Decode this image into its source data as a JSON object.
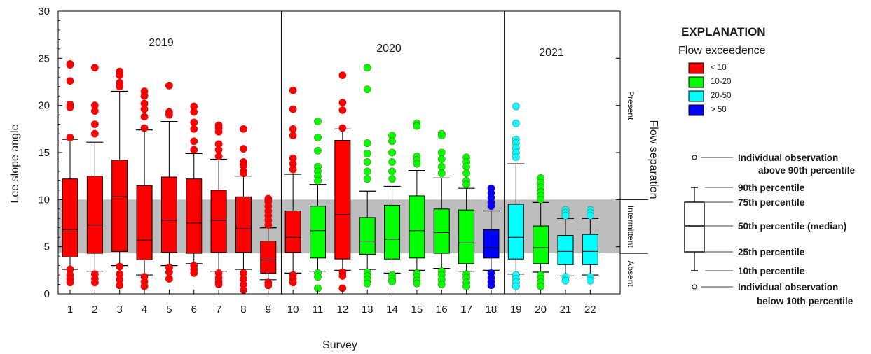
{
  "chart_data": {
    "type": "box",
    "xlabel": "Survey",
    "ylabel": "Lee slope angle",
    "ylim": [
      0,
      30
    ],
    "yticks": [
      0,
      5,
      10,
      15,
      20,
      25,
      30
    ],
    "grid": false,
    "years": [
      {
        "label": "2019",
        "surveys": [
          1,
          9
        ]
      },
      {
        "label": "2020",
        "surveys": [
          10,
          18
        ]
      },
      {
        "label": "2021",
        "surveys": [
          19,
          22
        ]
      }
    ],
    "bands": {
      "shaded_range": [
        4.3,
        10
      ],
      "labels": [
        "Present",
        "Intermittent",
        "Absent"
      ],
      "title": "Flow separation"
    },
    "colors": {
      "lt10": "#ff0000",
      "10_20": "#00ff00",
      "20_50": "#00ffff",
      "gt50": "#0000ff",
      "band": "#bdbdbd"
    },
    "surveys": [
      {
        "survey": "1",
        "flow": "lt10",
        "p10": 2.6,
        "q1": 3.9,
        "median": 6.8,
        "q3": 12.2,
        "p90": 16.4,
        "outliers": [
          24.4,
          24.3,
          22.6,
          20.1,
          19.8,
          16.6,
          2.6,
          2.0,
          1.6,
          1.2
        ]
      },
      {
        "survey": "2",
        "flow": "lt10",
        "p10": 2.4,
        "q1": 4.3,
        "median": 7.3,
        "q3": 12.5,
        "p90": 16.1,
        "outliers": [
          24.0,
          20.0,
          19.4,
          18.0,
          17.0,
          2.1,
          1.6,
          1.2
        ]
      },
      {
        "survey": "3",
        "flow": "lt10",
        "p10": 3.0,
        "q1": 4.5,
        "median": 10.3,
        "q3": 14.2,
        "p90": 21.5,
        "outliers": [
          23.6,
          23.2,
          22.4,
          22.0,
          2.9,
          2.1,
          1.5,
          0.9
        ]
      },
      {
        "survey": "4",
        "flow": "lt10",
        "p10": 2.0,
        "q1": 3.6,
        "median": 5.7,
        "q3": 11.5,
        "p90": 17.4,
        "outliers": [
          21.5,
          21.0,
          20.2,
          19.6,
          18.8,
          17.6,
          1.8,
          1.3,
          0.8
        ]
      },
      {
        "survey": "5",
        "flow": "lt10",
        "p10": 3.0,
        "q1": 4.4,
        "median": 7.8,
        "q3": 12.4,
        "p90": 18.3,
        "outliers": [
          22.1,
          19.3,
          19.0,
          2.8,
          2.3,
          1.6
        ]
      },
      {
        "survey": "6",
        "flow": "lt10",
        "p10": 3.2,
        "q1": 4.3,
        "median": 7.5,
        "q3": 12.2,
        "p90": 14.9,
        "outliers": [
          19.9,
          19.3,
          18.2,
          17.5,
          16.2,
          15.3,
          3.0,
          2.6,
          2.2
        ]
      },
      {
        "survey": "7",
        "flow": "lt10",
        "p10": 2.4,
        "q1": 4.4,
        "median": 7.8,
        "q3": 11.0,
        "p90": 14.3,
        "outliers": [
          17.9,
          17.6,
          17.2,
          15.9,
          15.3,
          14.6,
          2.2,
          1.7,
          1.3,
          1.0
        ]
      },
      {
        "survey": "8",
        "flow": "lt10",
        "p10": 2.6,
        "q1": 4.4,
        "median": 6.9,
        "q3": 10.3,
        "p90": 12.5,
        "outliers": [
          17.5,
          15.4,
          14.0,
          13.6,
          13.0,
          12.8,
          2.2,
          1.6,
          1.0,
          0.4
        ]
      },
      {
        "survey": "9",
        "flow": "lt10",
        "p10": 1.5,
        "q1": 2.2,
        "median": 3.6,
        "q3": 5.6,
        "p90": 7.0,
        "outliers": [
          10.1,
          9.8,
          9.3,
          8.8,
          8.3,
          7.8,
          7.3,
          1.2,
          0.9
        ]
      },
      {
        "survey": "10",
        "flow": "lt10",
        "p10": 2.2,
        "q1": 4.4,
        "median": 6.0,
        "q3": 8.8,
        "p90": 12.7,
        "outliers": [
          21.6,
          19.6,
          17.5,
          16.8,
          14.4,
          13.8,
          13.2,
          2.0,
          1.6,
          1.2
        ]
      },
      {
        "survey": "11",
        "flow": "10_20",
        "p10": 2.4,
        "q1": 3.8,
        "median": 6.7,
        "q3": 9.3,
        "p90": 11.6,
        "outliers": [
          18.3,
          16.6,
          15.2,
          13.5,
          13.0,
          12.5,
          12.0,
          2.2,
          1.8,
          0.6
        ]
      },
      {
        "survey": "12",
        "flow": "lt10",
        "p10": 2.5,
        "q1": 3.7,
        "median": 8.4,
        "q3": 16.3,
        "p90": 17.5,
        "outliers": [
          23.2,
          20.3,
          19.5,
          17.6,
          2.3,
          1.9,
          0.6
        ]
      },
      {
        "survey": "13",
        "flow": "10_20",
        "p10": 2.6,
        "q1": 4.2,
        "median": 5.6,
        "q3": 8.1,
        "p90": 10.9,
        "outliers": [
          24.0,
          21.7,
          16.0,
          14.9,
          14.0,
          13.0,
          12.2,
          2.3,
          1.9,
          1.5,
          1.1
        ]
      },
      {
        "survey": "14",
        "flow": "10_20",
        "p10": 2.2,
        "q1": 3.7,
        "median": 5.8,
        "q3": 9.4,
        "p90": 11.4,
        "outliers": [
          16.8,
          16.2,
          15.0,
          14.0,
          13.0,
          12.2,
          2.0,
          1.6,
          1.3
        ]
      },
      {
        "survey": "15",
        "flow": "10_20",
        "p10": 2.5,
        "q1": 3.8,
        "median": 6.7,
        "q3": 10.4,
        "p90": 13.1,
        "outliers": [
          18.1,
          17.8,
          14.6,
          14.2,
          13.8,
          2.2,
          1.8,
          1.4,
          1.1
        ]
      },
      {
        "survey": "16",
        "flow": "10_20",
        "p10": 2.7,
        "q1": 4.3,
        "median": 6.5,
        "q3": 9.0,
        "p90": 12.3,
        "outliers": [
          17.0,
          16.8,
          15.0,
          14.3,
          13.5,
          12.8,
          2.4,
          2.0,
          1.5,
          1.0
        ]
      },
      {
        "survey": "17",
        "flow": "10_20",
        "p10": 2.4,
        "q1": 3.2,
        "median": 5.4,
        "q3": 8.9,
        "p90": 11.2,
        "outliers": [
          14.5,
          14.0,
          13.5,
          12.8,
          12.0,
          11.6,
          2.1,
          1.7,
          1.2,
          0.8
        ]
      },
      {
        "survey": "18",
        "flow": "gt50",
        "p10": 2.5,
        "q1": 3.8,
        "median": 4.9,
        "q3": 6.8,
        "p90": 8.8,
        "outliers": [
          11.2,
          10.7,
          10.2,
          9.7,
          9.3,
          2.2,
          1.7,
          1.3,
          0.9
        ]
      },
      {
        "survey": "19",
        "flow": "20_50",
        "p10": 2.1,
        "q1": 3.7,
        "median": 6.0,
        "q3": 9.5,
        "p90": 13.8,
        "outliers": [
          19.9,
          18.1,
          16.4,
          16.0,
          15.5,
          15.0,
          14.5,
          2.0,
          1.6,
          1.2,
          0.8
        ]
      },
      {
        "survey": "20",
        "flow": "10_20",
        "p10": 2.3,
        "q1": 3.2,
        "median": 4.9,
        "q3": 7.2,
        "p90": 9.7,
        "outliers": [
          12.3,
          11.8,
          11.3,
          10.8,
          10.4,
          10.0,
          2.0,
          1.6,
          1.2,
          0.8
        ]
      },
      {
        "survey": "21",
        "flow": "20_50",
        "p10": 1.9,
        "q1": 3.1,
        "median": 4.5,
        "q3": 6.2,
        "p90": 8.0,
        "outliers": [
          8.9,
          8.6,
          8.3,
          1.8,
          1.4
        ]
      },
      {
        "survey": "22",
        "flow": "20_50",
        "p10": 2.0,
        "q1": 3.1,
        "median": 4.5,
        "q3": 6.3,
        "p90": 8.0,
        "outliers": [
          8.9,
          8.6,
          8.3,
          1.8,
          1.4
        ]
      }
    ]
  },
  "explanation": {
    "title": "EXPLANATION",
    "subtitle": "Flow exceedence",
    "items": [
      {
        "key": "lt10",
        "label": "< 10"
      },
      {
        "key": "10_20",
        "label": "10-20"
      },
      {
        "key": "20_50",
        "label": "20-50"
      },
      {
        "key": "gt50",
        "label": "> 50"
      }
    ],
    "box_key": {
      "above": [
        "Individual observation",
        "above 90th percentile"
      ],
      "p90": "90th percentile",
      "q3": "75th percentile",
      "median": "50th percentile (median)",
      "q1": "25th percentile",
      "p10": "10th percentile",
      "below": [
        "Individual observation",
        "below 10th percentile"
      ]
    }
  }
}
